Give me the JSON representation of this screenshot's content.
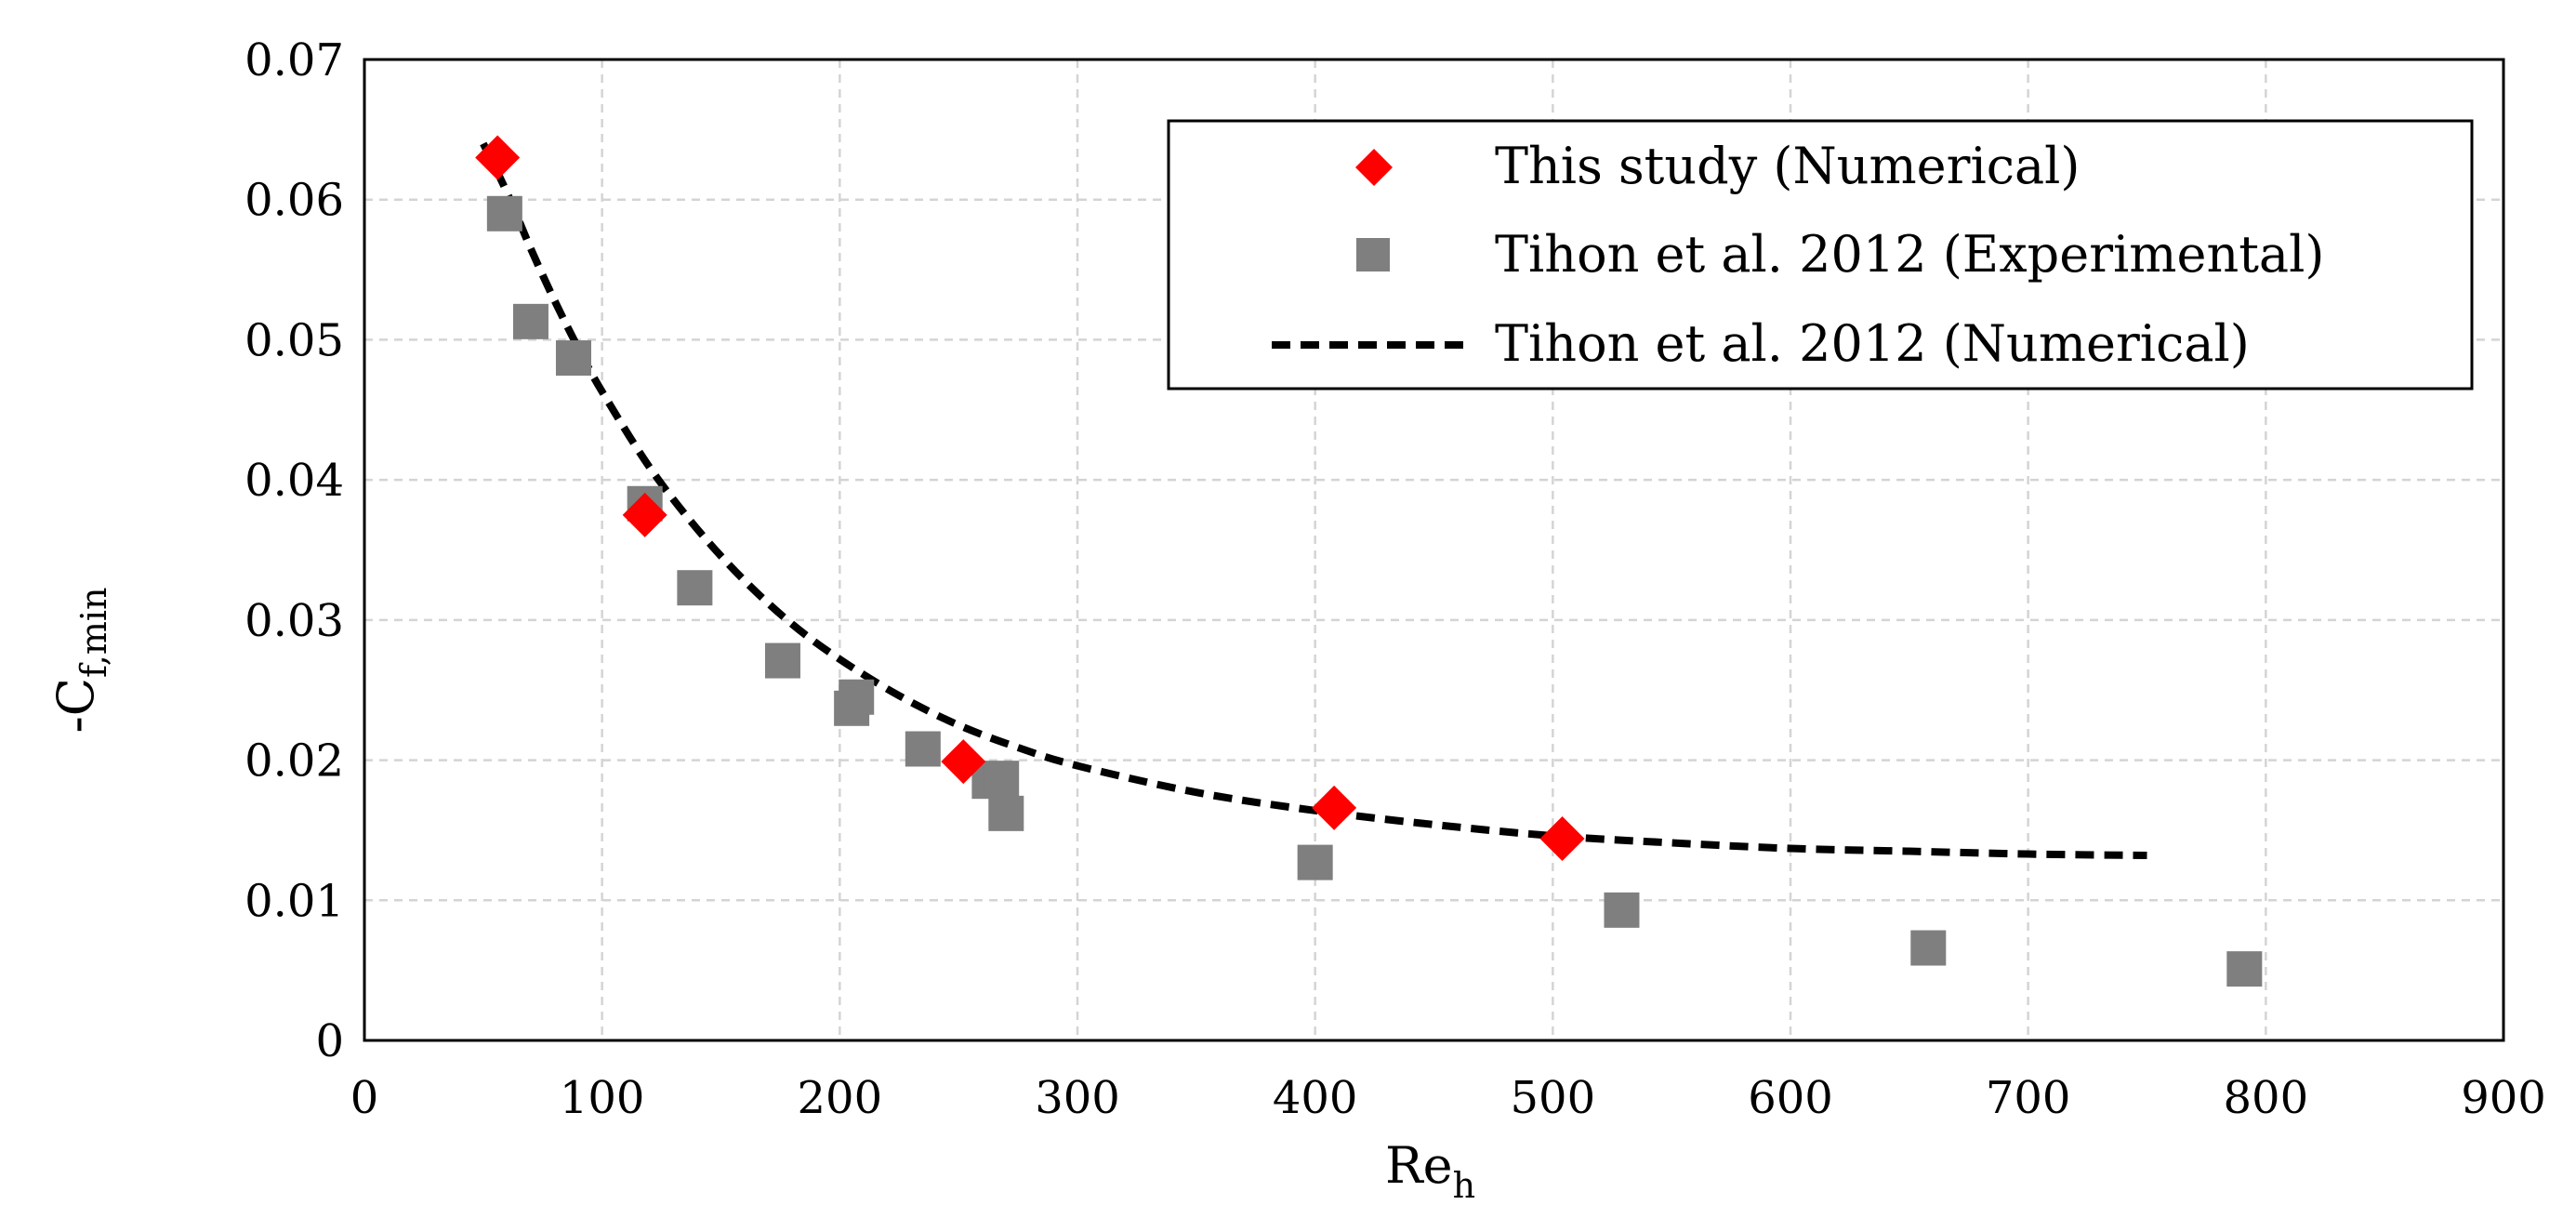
{
  "chart_data": {
    "type": "scatter",
    "title": "",
    "xlabel": "Re",
    "xlabel_subscript": "h",
    "ylabel": "-C",
    "ylabel_subscript": "f,min",
    "xlim": [
      0,
      900
    ],
    "ylim": [
      0,
      0.07
    ],
    "x_ticks": [
      0,
      100,
      200,
      300,
      400,
      500,
      600,
      700,
      800,
      900
    ],
    "y_ticks": [
      0,
      0.01,
      0.02,
      0.03,
      0.04,
      0.05,
      0.06,
      0.07
    ],
    "x_tick_labels": [
      "0",
      "100",
      "200",
      "300",
      "400",
      "500",
      "600",
      "700",
      "800",
      "900"
    ],
    "y_tick_labels": [
      "0",
      "0.01",
      "0.02",
      "0.03",
      "0.04",
      "0.05",
      "0.06",
      "0.07"
    ],
    "grid": true,
    "legend_position": "top-right",
    "series": [
      {
        "name": "This study (Numerical)",
        "marker": "diamond",
        "color": "#ff0000",
        "x": [
          56,
          118,
          252,
          408,
          504
        ],
        "y": [
          0.063,
          0.0375,
          0.0199,
          0.0166,
          0.0144
        ]
      },
      {
        "name": "Tihon et al. 2012 (Experimental)",
        "marker": "square",
        "color": "#7f7f7f",
        "x": [
          59,
          70,
          88,
          118,
          139,
          176,
          205,
          207,
          235,
          263,
          268,
          270,
          400,
          529,
          658,
          791
        ],
        "y": [
          0.059,
          0.0513,
          0.0487,
          0.0383,
          0.0323,
          0.0271,
          0.0237,
          0.0245,
          0.0208,
          0.0185,
          0.0187,
          0.0162,
          0.0127,
          0.0093,
          0.0066,
          0.0051
        ]
      },
      {
        "name": "Tihon et al. 2012 (Numerical)",
        "marker": "dashed-line",
        "color": "#000000",
        "x": [
          50,
          60,
          70,
          80,
          90,
          100,
          120,
          140,
          160,
          180,
          200,
          225,
          250,
          275,
          300,
          350,
          400,
          450,
          500,
          550,
          600,
          650,
          700,
          750
        ],
        "y": [
          0.064,
          0.0605,
          0.0565,
          0.0528,
          0.0494,
          0.0463,
          0.0409,
          0.0365,
          0.0328,
          0.0297,
          0.0272,
          0.0246,
          0.0225,
          0.0209,
          0.0196,
          0.0177,
          0.0164,
          0.0154,
          0.0146,
          0.0141,
          0.0137,
          0.0135,
          0.0133,
          0.0132
        ]
      }
    ]
  }
}
